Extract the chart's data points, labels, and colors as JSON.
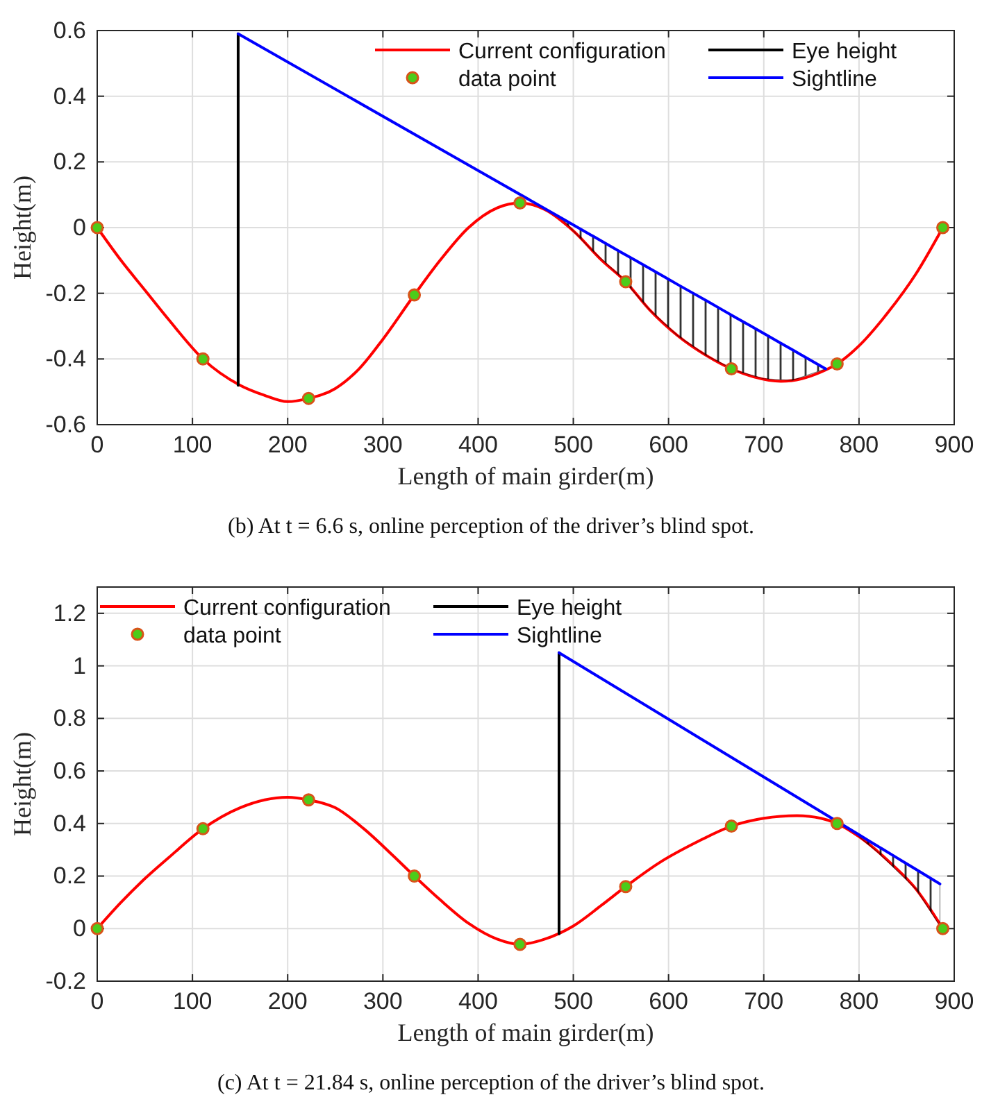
{
  "chart_data": [
    {
      "type": "line",
      "xlabel": "Length of main girder(m)",
      "ylabel": "Height(m)",
      "xlim": [
        0,
        900
      ],
      "xticks": [
        0,
        100,
        200,
        300,
        400,
        500,
        600,
        700,
        800,
        900
      ],
      "ylim": [
        -0.6,
        0.6
      ],
      "yticks": [
        -0.6,
        -0.4,
        -0.2,
        0,
        0.2,
        0.4,
        0.6
      ],
      "grid": true,
      "legend": "top",
      "annotations": [
        "(b) At t = 6.6 s, online perception of the driver’s blind spot."
      ],
      "series": [
        {
          "name": "Current configuration",
          "color": "#ff0000",
          "x": [
            0,
            25,
            50,
            75,
            111,
            150,
            175,
            200,
            222,
            250,
            275,
            300,
            333,
            360,
            390,
            420,
            444,
            470,
            500,
            530,
            555,
            580,
            610,
            640,
            666,
            690,
            718,
            740,
            760,
            777,
            800,
            830,
            860,
            888
          ],
          "values": [
            0,
            -0.1,
            -0.19,
            -0.28,
            -0.4,
            -0.48,
            -0.51,
            -0.53,
            -0.52,
            -0.49,
            -0.43,
            -0.34,
            -0.205,
            -0.1,
            0,
            0.06,
            0.075,
            0.055,
            -0.01,
            -0.1,
            -0.165,
            -0.25,
            -0.33,
            -0.39,
            -0.43,
            -0.455,
            -0.468,
            -0.46,
            -0.44,
            -0.415,
            -0.36,
            -0.26,
            -0.14,
            0
          ]
        },
        {
          "type": "scatter",
          "name": "data point",
          "color": "#d95319",
          "marker": "circle",
          "x": [
            0,
            111,
            222,
            333,
            444,
            555,
            666,
            777,
            888
          ],
          "values": [
            0,
            -0.4,
            -0.52,
            -0.205,
            0.075,
            -0.165,
            -0.43,
            -0.415,
            0
          ]
        },
        {
          "name": "Eye height",
          "color": "#000000",
          "x": [
            148,
            148
          ],
          "values": [
            -0.48,
            0.59
          ]
        },
        {
          "name": "Sightline",
          "color": "#0000ff",
          "x": [
            148,
            490,
            520,
            550,
            580,
            610,
            640,
            670,
            700,
            730,
            765
          ],
          "values": [
            0.59,
            0.025,
            -0.025,
            -0.075,
            -0.124,
            -0.174,
            -0.223,
            -0.273,
            -0.322,
            -0.372,
            -0.43
          ],
          "lower": [
            null,
            0.02,
            -0.07,
            -0.15,
            -0.25,
            -0.33,
            -0.39,
            -0.435,
            -0.46,
            -0.465,
            -0.43
          ],
          "upper": [
            null,
            0.025,
            -0.025,
            -0.075,
            -0.124,
            -0.174,
            -0.223,
            -0.273,
            -0.322,
            -0.372,
            -0.43
          ]
        }
      ]
    },
    {
      "type": "line",
      "xlabel": "Length of main girder(m)",
      "ylabel": "Height(m)",
      "xlim": [
        0,
        900
      ],
      "xticks": [
        0,
        100,
        200,
        300,
        400,
        500,
        600,
        700,
        800,
        900
      ],
      "ylim": [
        -0.2,
        1.3
      ],
      "yticks": [
        -0.2,
        0,
        0.2,
        0.4,
        0.6,
        0.8,
        1,
        1.2
      ],
      "grid": true,
      "legend": "top left",
      "annotations": [
        "(c) At t = 21.84 s, online perception of the driver’s blind spot."
      ],
      "series": [
        {
          "name": "Current configuration",
          "color": "#ff0000",
          "x": [
            0,
            25,
            50,
            75,
            111,
            150,
            200,
            222,
            250,
            280,
            310,
            333,
            360,
            390,
            420,
            444,
            470,
            500,
            530,
            555,
            590,
            630,
            666,
            700,
            735,
            760,
            777,
            800,
            830,
            860,
            888
          ],
          "values": [
            0,
            0.1,
            0.19,
            0.27,
            0.38,
            0.46,
            0.5,
            0.49,
            0.46,
            0.38,
            0.28,
            0.2,
            0.11,
            0.02,
            -0.04,
            -0.06,
            -0.04,
            0.01,
            0.09,
            0.16,
            0.25,
            0.33,
            0.39,
            0.42,
            0.43,
            0.42,
            0.4,
            0.35,
            0.26,
            0.15,
            0
          ]
        },
        {
          "type": "scatter",
          "name": "data point",
          "color": "#d95319",
          "marker": "circle",
          "x": [
            0,
            111,
            222,
            333,
            444,
            555,
            666,
            777,
            888
          ],
          "values": [
            0,
            0.38,
            0.49,
            0.2,
            -0.06,
            0.16,
            0.39,
            0.4,
            0
          ]
        },
        {
          "name": "Eye height",
          "color": "#000000",
          "x": [
            485,
            485
          ],
          "values": [
            -0.02,
            1.05
          ]
        },
        {
          "name": "Sightline",
          "color": "#0000ff",
          "x": [
            485,
            800,
            820,
            840,
            860,
            885
          ],
          "values": [
            1.05,
            0.357,
            0.313,
            0.269,
            0.225,
            0.17
          ],
          "lower": [
            null,
            0.35,
            0.29,
            0.22,
            0.15,
            0.01
          ],
          "upper": [
            null,
            0.357,
            0.313,
            0.269,
            0.225,
            0.17
          ]
        }
      ]
    }
  ]
}
